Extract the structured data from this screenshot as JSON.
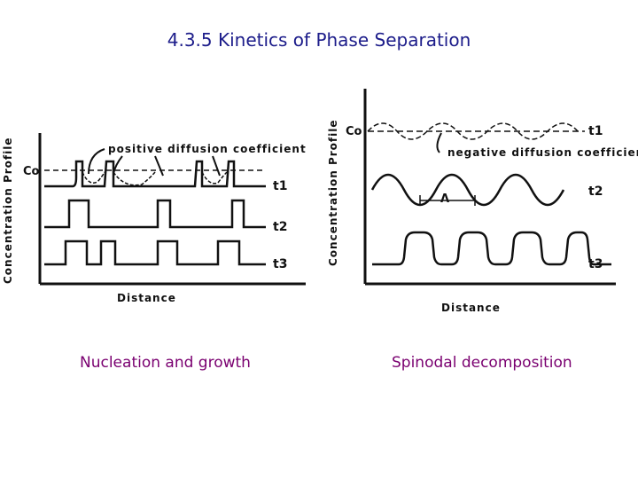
{
  "title": "4.3.5 Kinetics of Phase Separation",
  "left_panel": {
    "y_axis_label": "Concentration Profile",
    "x_axis_label": "Distance",
    "c0_label": "Co",
    "annotation": "positive diffusion coefficient",
    "time_labels": [
      "t1",
      "t2",
      "t3"
    ],
    "caption": "Nucleation and growth"
  },
  "right_panel": {
    "y_axis_label": "Concentration Profile",
    "x_axis_label": "Distance",
    "c0_label": "Co",
    "annotation": "negative diffusion coefficien",
    "wavelength_symbol": "Λ",
    "time_labels": [
      "t1",
      "t2",
      "t3"
    ],
    "caption": "Spinodal decomposition"
  },
  "colors": {
    "title": "#1c1c8a",
    "caption": "#7a0070",
    "line": "#111111"
  }
}
